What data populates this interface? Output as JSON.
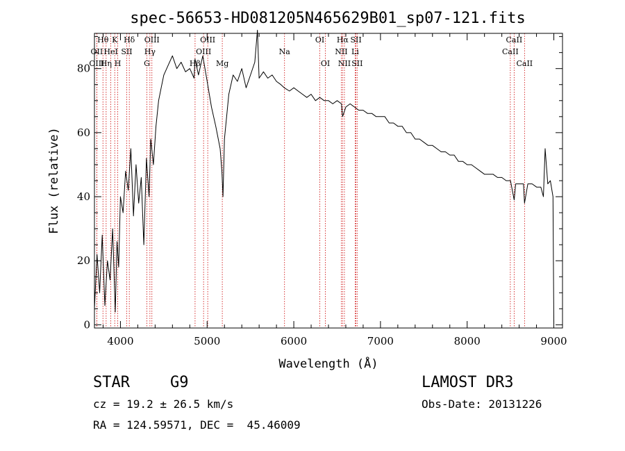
{
  "chart_data": {
    "type": "line",
    "title": "spec-56653-HD081205N465629B01_sp07-121.fits",
    "xlabel": "Wavelength (Å)",
    "ylabel": "Flux (relative)",
    "xlim": [
      3700,
      9100
    ],
    "ylim": [
      -1,
      91
    ],
    "xticks": [
      4000,
      5000,
      6000,
      7000,
      8000,
      9000
    ],
    "yticks": [
      0,
      20,
      40,
      60,
      80
    ],
    "series": [
      {
        "name": "flux",
        "x": [
          3700,
          3730,
          3760,
          3790,
          3820,
          3850,
          3880,
          3910,
          3940,
          3960,
          3980,
          4000,
          4030,
          4060,
          4090,
          4120,
          4150,
          4180,
          4210,
          4240,
          4270,
          4300,
          4330,
          4350,
          4380,
          4410,
          4440,
          4470,
          4500,
          4550,
          4600,
          4650,
          4700,
          4750,
          4800,
          4850,
          4860,
          4900,
          4950,
          5000,
          5050,
          5100,
          5150,
          5170,
          5183,
          5200,
          5250,
          5300,
          5350,
          5400,
          5450,
          5500,
          5550,
          5580,
          5600,
          5650,
          5700,
          5750,
          5800,
          5850,
          5890,
          5950,
          6000,
          6050,
          6100,
          6150,
          6200,
          6250,
          6300,
          6350,
          6400,
          6450,
          6500,
          6550,
          6563,
          6600,
          6650,
          6700,
          6750,
          6800,
          6850,
          6900,
          6950,
          7000,
          7050,
          7100,
          7150,
          7200,
          7250,
          7300,
          7350,
          7400,
          7450,
          7500,
          7550,
          7600,
          7650,
          7700,
          7750,
          7800,
          7850,
          7900,
          7950,
          8000,
          8050,
          8100,
          8150,
          8200,
          8250,
          8300,
          8350,
          8400,
          8450,
          8500,
          8542,
          8560,
          8600,
          8650,
          8662,
          8700,
          8750,
          8800,
          8850,
          8880,
          8900,
          8930,
          8960,
          8990,
          9000
        ],
        "values": [
          5,
          22,
          10,
          28,
          6,
          20,
          14,
          30,
          4,
          26,
          18,
          40,
          35,
          48,
          42,
          55,
          34,
          50,
          38,
          46,
          25,
          52,
          40,
          58,
          50,
          62,
          70,
          74,
          78,
          81,
          84,
          80,
          82,
          79,
          80,
          77,
          83,
          78,
          84,
          76,
          68,
          62,
          55,
          48,
          40,
          58,
          72,
          78,
          76,
          80,
          74,
          78,
          82,
          92,
          77,
          79,
          77,
          78,
          76,
          75,
          74,
          73,
          74,
          73,
          72,
          71,
          72,
          70,
          71,
          70,
          70,
          69,
          70,
          69,
          65,
          68,
          69,
          68,
          67,
          67,
          66,
          66,
          65,
          65,
          65,
          63,
          63,
          62,
          62,
          60,
          60,
          58,
          58,
          57,
          56,
          56,
          55,
          54,
          54,
          53,
          53,
          51,
          51,
          50,
          50,
          49,
          48,
          47,
          47,
          47,
          46,
          46,
          45,
          45,
          39,
          44,
          44,
          44,
          38,
          44,
          44,
          43,
          43,
          40,
          55,
          44,
          45,
          40,
          1
        ]
      }
    ],
    "spectral_lines": [
      {
        "name": "Hθ",
        "wavelength": 3798,
        "row": 1
      },
      {
        "name": "OII",
        "wavelength": 3727,
        "row": 2
      },
      {
        "name": "OIII",
        "wavelength": 3727,
        "row": 3
      },
      {
        "name": "K",
        "wavelength": 3934,
        "row": 1
      },
      {
        "name": "HeI",
        "wavelength": 3889,
        "row": 2
      },
      {
        "name": "Hη",
        "wavelength": 3835,
        "row": 3
      },
      {
        "name": "Hδ",
        "wavelength": 4102,
        "row": 1
      },
      {
        "name": "SII",
        "wavelength": 4072,
        "row": 2
      },
      {
        "name": "H",
        "wavelength": 3969,
        "row": 3
      },
      {
        "name": "OIII",
        "wavelength": 4363,
        "row": 1
      },
      {
        "name": "Hγ",
        "wavelength": 4340,
        "row": 2
      },
      {
        "name": "G",
        "wavelength": 4305,
        "row": 3
      },
      {
        "name": "OIII",
        "wavelength": 5007,
        "row": 1
      },
      {
        "name": "OIII",
        "wavelength": 4959,
        "row": 2
      },
      {
        "name": "Hβ",
        "wavelength": 4861,
        "row": 3
      },
      {
        "name": "Mg",
        "wavelength": 5175,
        "row": 3
      },
      {
        "name": "Na",
        "wavelength": 5893,
        "row": 2
      },
      {
        "name": "OI",
        "wavelength": 6300,
        "row": 1
      },
      {
        "name": "OI",
        "wavelength": 6364,
        "row": 3
      },
      {
        "name": "Hα",
        "wavelength": 6563,
        "row": 1
      },
      {
        "name": "SII",
        "wavelength": 6717,
        "row": 1
      },
      {
        "name": "NII",
        "wavelength": 6548,
        "row": 2
      },
      {
        "name": "Li",
        "wavelength": 6708,
        "row": 2
      },
      {
        "name": "NII",
        "wavelength": 6584,
        "row": 3
      },
      {
        "name": "SII",
        "wavelength": 6731,
        "row": 3
      },
      {
        "name": "CaII",
        "wavelength": 8542,
        "row": 1
      },
      {
        "name": "CaII",
        "wavelength": 8498,
        "row": 2
      },
      {
        "name": "CaII",
        "wavelength": 8662,
        "row": 3
      }
    ]
  },
  "info": {
    "class": "STAR",
    "subclass": "G9",
    "survey": "LAMOST DR3",
    "cz": "cz = 19.2 ± 26.5 km/s",
    "obs_date": "Obs-Date: 20131226",
    "coords": "RA = 124.59571, DEC =  45.46009"
  },
  "colors": {
    "line": "#cc0000",
    "spectrum": "#000000"
  }
}
